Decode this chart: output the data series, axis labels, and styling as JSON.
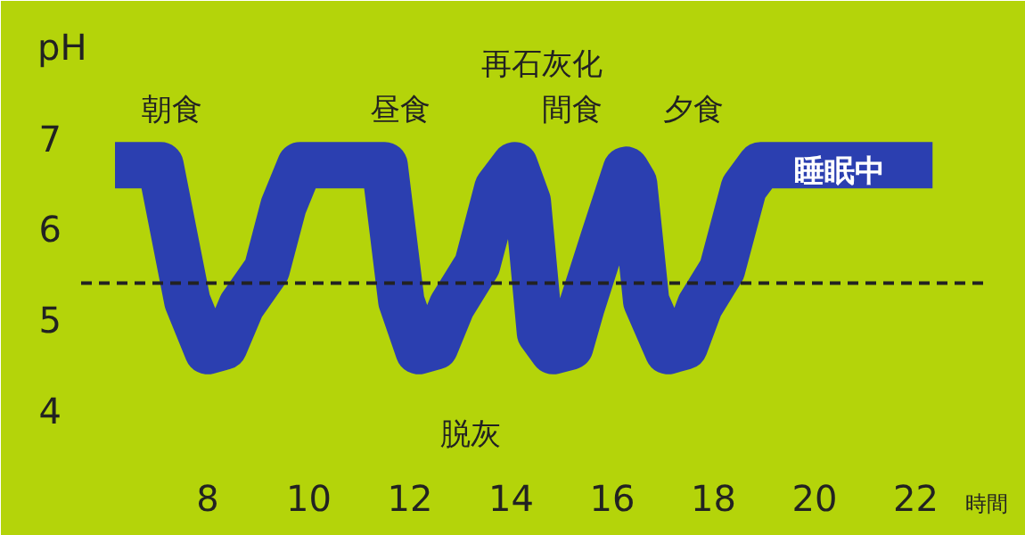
{
  "chart_data": {
    "type": "line",
    "xlabel": "時間",
    "ylabel": "pH",
    "x": [
      6.17,
      7.07,
      7.6,
      8.0,
      8.33,
      8.67,
      9.17,
      9.5,
      9.83,
      11.5,
      11.83,
      12.17,
      12.5,
      12.83,
      13.33,
      13.73,
      14.07,
      14.33,
      14.57,
      14.83,
      15.17,
      15.4,
      15.83,
      16.27,
      16.43,
      16.67,
      17.1,
      17.43,
      17.73,
      18.17,
      18.6,
      18.93,
      22.33
    ],
    "series": [
      {
        "color": "#2b3fb0",
        "values": [
          6.7,
          6.7,
          5.2,
          4.65,
          4.7,
          5.15,
          5.55,
          6.25,
          6.7,
          6.7,
          5.2,
          4.65,
          4.7,
          5.15,
          5.6,
          6.45,
          6.7,
          6.3,
          4.85,
          4.65,
          4.7,
          5.15,
          5.9,
          6.65,
          6.5,
          5.2,
          4.65,
          4.7,
          5.15,
          5.55,
          6.45,
          6.7,
          6.7
        ]
      }
    ],
    "xlim": [
      5.5,
      23.4
    ],
    "ylim": [
      3.4,
      8.0
    ],
    "xticks": [
      8,
      10,
      12,
      14,
      16,
      18,
      20,
      22
    ],
    "yticks": [
      4,
      5,
      6,
      7
    ],
    "ref_lines": [
      {
        "axis": "y",
        "value": 5.4,
        "line_style": "dashed",
        "color": "#222222"
      }
    ],
    "annotations": [
      "朝食",
      "昼食",
      "間食",
      "夕食",
      "再石灰化",
      "脱灰",
      "睡眠中"
    ],
    "grid": false
  }
}
